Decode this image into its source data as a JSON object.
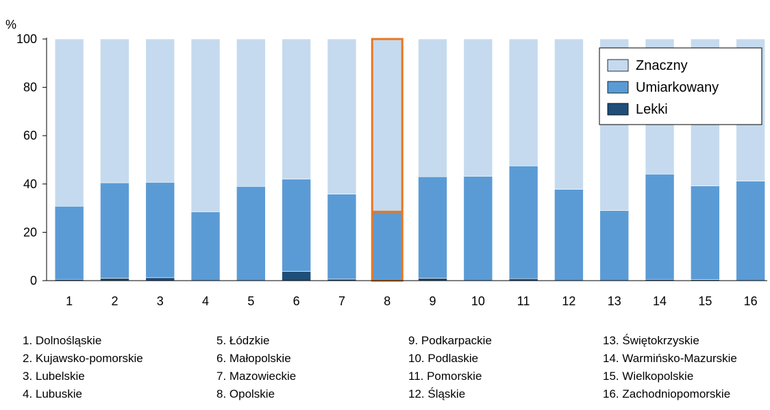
{
  "chart_data": {
    "type": "bar",
    "stacked": true,
    "y_unit_label": "%",
    "ylim": [
      0,
      100
    ],
    "yticks": [
      0,
      20,
      40,
      60,
      80,
      100
    ],
    "categories": [
      "1",
      "2",
      "3",
      "4",
      "5",
      "6",
      "7",
      "8",
      "9",
      "10",
      "11",
      "12",
      "13",
      "14",
      "15",
      "16"
    ],
    "series": [
      {
        "name": "Lekki",
        "color": "#1F4E79",
        "values": [
          0.5,
          1.0,
          1.2,
          0,
          0,
          3.8,
          0.6,
          0,
          1.0,
          0,
          0.8,
          0,
          0,
          0.5,
          0.4,
          0
        ]
      },
      {
        "name": "Umiarkowany",
        "color": "#5B9BD5",
        "values": [
          30.3,
          39.5,
          39.5,
          28.5,
          39.0,
          38.2,
          35.2,
          28.5,
          42.0,
          43.2,
          46.7,
          37.8,
          29.0,
          43.6,
          38.8,
          41.2
        ]
      },
      {
        "name": "Znaczny",
        "color": "#C5DAEE",
        "values": [
          69.2,
          59.5,
          59.3,
          71.5,
          61.0,
          58.0,
          64.2,
          71.5,
          57.0,
          56.8,
          52.5,
          62.2,
          71.0,
          55.9,
          60.8,
          58.8
        ]
      }
    ],
    "highlighted_category": "8",
    "highlight_color": "#E87722",
    "legend_position": "top-right",
    "legend_order": [
      "Znaczny",
      "Umiarkowany",
      "Lekki"
    ],
    "grid": false
  },
  "region_key": [
    "1. Dolnośląskie",
    "2. Kujawsko-pomorskie",
    "3. Lubelskie",
    "4. Lubuskie",
    "5. Łódzkie",
    "6. Małopolskie",
    "7. Mazowieckie",
    "8. Opolskie",
    "9. Podkarpackie",
    "10. Podlaskie",
    "11. Pomorskie",
    "12. Śląskie",
    "13. Świętokrzyskie",
    "14. Warmińsko-Mazurskie",
    "15. Wielkopolskie",
    "16. Zachodniopomorskie"
  ]
}
